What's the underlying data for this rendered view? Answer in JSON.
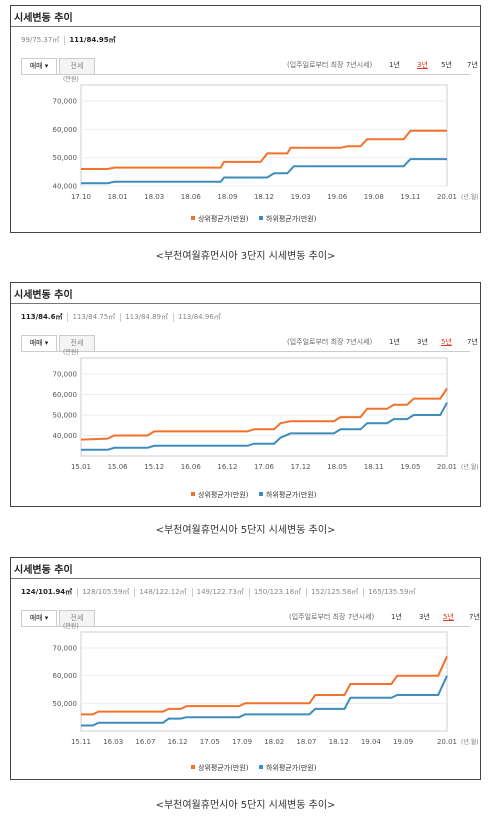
{
  "colors": {
    "upper": "#f2722b",
    "lower": "#3c8dbc",
    "active_tab": "#e03a1e"
  },
  "panels": [
    {
      "title": "시세변동 추이",
      "areas": [
        {
          "label": "99/75.37㎡",
          "active": false
        },
        {
          "label": "111/84.95㎡",
          "active": true
        }
      ],
      "tabs": [
        "매매 ▾",
        "전세"
      ],
      "period_note": "(입주일로부터 최장 7년시세)",
      "periods": [
        {
          "label": "1년",
          "active": false
        },
        {
          "label": "3년",
          "active": true
        },
        {
          "label": "5년",
          "active": false
        },
        {
          "label": "7년",
          "active": false
        }
      ],
      "caption": "<부천여월휴먼시아 3단지 시세변동 추이>"
    },
    {
      "title": "시세변동 추이",
      "areas": [
        {
          "label": "113/84.6㎡",
          "active": true
        },
        {
          "label": "113/84.75㎡",
          "active": false
        },
        {
          "label": "113/84.89㎡",
          "active": false
        },
        {
          "label": "113/84.96㎡",
          "active": false
        }
      ],
      "tabs": [
        "매매 ▾",
        "전세"
      ],
      "period_note": "(입주일로부터 최장 7년시세)",
      "periods": [
        {
          "label": "1년",
          "active": false
        },
        {
          "label": "3년",
          "active": false
        },
        {
          "label": "5년",
          "active": true
        },
        {
          "label": "7년",
          "active": false
        }
      ],
      "caption": "<부천여월휴먼시아 5단지 시세변동 추이>"
    },
    {
      "title": "시세변동 추이",
      "areas": [
        {
          "label": "124/101.94㎡",
          "active": true
        },
        {
          "label": "128/105.59㎡",
          "active": false
        },
        {
          "label": "148/122.12㎡",
          "active": false
        },
        {
          "label": "149/122.73㎡",
          "active": false
        },
        {
          "label": "150/123.18㎡",
          "active": false
        },
        {
          "label": "152/125.58㎡",
          "active": false
        },
        {
          "label": "165/135.59㎡",
          "active": false
        }
      ],
      "tabs": [
        "매매 ▾",
        "전세"
      ],
      "period_note": "(입주일로부터 최장 7년시세)",
      "periods": [
        {
          "label": "1년",
          "active": false
        },
        {
          "label": "3년",
          "active": false
        },
        {
          "label": "5년",
          "active": true
        },
        {
          "label": "7년",
          "active": false
        }
      ],
      "caption": "<부천여월휴먼시아 5단지 시세변동 추이>"
    }
  ],
  "chart_data": [
    {
      "type": "line",
      "ylabel": "(만원)",
      "x_unit": "(년.월)",
      "ylim": [
        40000,
        70000
      ],
      "yticks": [
        "70,000",
        "60,000",
        "50,000",
        "40,000"
      ],
      "ytick_values": [
        70000,
        60000,
        50000,
        40000
      ],
      "xticks": [
        "17.10",
        "18.01",
        "18.03",
        "18.06",
        "18.09",
        "18.12",
        "19.03",
        "19.06",
        "19.08",
        "19.11",
        "20.01"
      ],
      "legend": [
        "상위평균가(만원)",
        "하위평균가(만원)"
      ],
      "series": [
        {
          "name": "상위평균가(만원)",
          "points": [
            [
              0,
              46000
            ],
            [
              0.8,
              46000
            ],
            [
              1,
              46500
            ],
            [
              4.2,
              46500
            ],
            [
              4.3,
              48500
            ],
            [
              5.4,
              48500
            ],
            [
              5.6,
              51500
            ],
            [
              6.2,
              51500
            ],
            [
              6.3,
              53500
            ],
            [
              7.8,
              53500
            ],
            [
              8.0,
              54000
            ],
            [
              8.4,
              54000
            ],
            [
              8.6,
              56500
            ],
            [
              9.7,
              56500
            ],
            [
              9.9,
              59500
            ],
            [
              11,
              59500
            ]
          ]
        },
        {
          "name": "하위평균가(만원)",
          "points": [
            [
              0,
              41000
            ],
            [
              0.8,
              41000
            ],
            [
              1,
              41500
            ],
            [
              4.2,
              41500
            ],
            [
              4.3,
              43000
            ],
            [
              5.6,
              43000
            ],
            [
              5.8,
              44500
            ],
            [
              6.2,
              44500
            ],
            [
              6.4,
              47000
            ],
            [
              9.7,
              47000
            ],
            [
              9.9,
              49500
            ],
            [
              11,
              49500
            ]
          ]
        }
      ]
    },
    {
      "type": "line",
      "ylabel": "(만원)",
      "x_unit": "(년.월)",
      "ylim": [
        30000,
        70000
      ],
      "yticks": [
        "70,000",
        "60,000",
        "50,000",
        "40,000"
      ],
      "ytick_values": [
        70000,
        60000,
        50000,
        40000
      ],
      "xticks": [
        "15.01",
        "15.06",
        "15.12",
        "16.06",
        "16.12",
        "17.06",
        "17.12",
        "18.05",
        "18.11",
        "19.05",
        "20.01"
      ],
      "legend": [
        "상위평균가(만원)",
        "하위평균가(만원)"
      ],
      "series": [
        {
          "name": "상위평균가(만원)",
          "points": [
            [
              0,
              38000
            ],
            [
              0.8,
              38500
            ],
            [
              1.0,
              40000
            ],
            [
              2.0,
              40000
            ],
            [
              2.2,
              42000
            ],
            [
              5.0,
              42000
            ],
            [
              5.2,
              43000
            ],
            [
              5.8,
              43000
            ],
            [
              6.0,
              46000
            ],
            [
              6.3,
              47000
            ],
            [
              7.6,
              47000
            ],
            [
              7.8,
              49000
            ],
            [
              8.4,
              49000
            ],
            [
              8.6,
              53000
            ],
            [
              9.2,
              53000
            ],
            [
              9.4,
              55000
            ],
            [
              9.8,
              55000
            ],
            [
              10.0,
              58000
            ],
            [
              10.8,
              58000
            ],
            [
              11,
              63000
            ]
          ]
        },
        {
          "name": "하위평균가(만원)",
          "points": [
            [
              0,
              33000
            ],
            [
              0.8,
              33000
            ],
            [
              1.0,
              34000
            ],
            [
              2.0,
              34000
            ],
            [
              2.2,
              35000
            ],
            [
              5.0,
              35000
            ],
            [
              5.2,
              36000
            ],
            [
              5.8,
              36000
            ],
            [
              6.0,
              39000
            ],
            [
              6.3,
              41000
            ],
            [
              7.6,
              41000
            ],
            [
              7.8,
              43000
            ],
            [
              8.4,
              43000
            ],
            [
              8.6,
              46000
            ],
            [
              9.2,
              46000
            ],
            [
              9.4,
              48000
            ],
            [
              9.8,
              48000
            ],
            [
              10.0,
              50000
            ],
            [
              10.8,
              50000
            ],
            [
              11,
              56000
            ]
          ]
        }
      ]
    },
    {
      "type": "line",
      "ylabel": "(만원)",
      "x_unit": "(년.월)",
      "ylim": [
        40000,
        70000
      ],
      "yticks": [
        "70,000",
        "60,000",
        "50,000"
      ],
      "ytick_values": [
        70000,
        60000,
        50000
      ],
      "xticks": [
        "15.11",
        "16.03",
        "16.07",
        "16.12",
        "17.05",
        "17.09",
        "18.02",
        "18.07",
        "18.12",
        "19.04",
        "19.09",
        "20.01"
      ],
      "legend": [
        "상위평균가(만원)",
        "하위평균가(만원)"
      ],
      "series": [
        {
          "name": "상위평균가(만원)",
          "points": [
            [
              0,
              46000
            ],
            [
              0.4,
              46000
            ],
            [
              0.6,
              47000
            ],
            [
              2.8,
              47000
            ],
            [
              3.0,
              48000
            ],
            [
              3.4,
              48000
            ],
            [
              3.6,
              49000
            ],
            [
              5.4,
              49000
            ],
            [
              5.6,
              50000
            ],
            [
              7.8,
              50000
            ],
            [
              8.0,
              53000
            ],
            [
              9.0,
              53000
            ],
            [
              9.2,
              57000
            ],
            [
              10.6,
              57000
            ],
            [
              10.8,
              60000
            ],
            [
              12.2,
              60000
            ],
            [
              12.5,
              67000
            ]
          ]
        },
        {
          "name": "하위평균가(만원)",
          "points": [
            [
              0,
              42000
            ],
            [
              0.4,
              42000
            ],
            [
              0.6,
              43000
            ],
            [
              2.8,
              43000
            ],
            [
              3.0,
              44500
            ],
            [
              3.4,
              44500
            ],
            [
              3.6,
              45000
            ],
            [
              5.4,
              45000
            ],
            [
              5.6,
              46000
            ],
            [
              7.8,
              46000
            ],
            [
              8.0,
              48000
            ],
            [
              9.0,
              48000
            ],
            [
              9.2,
              52000
            ],
            [
              10.6,
              52000
            ],
            [
              10.8,
              53000
            ],
            [
              12.2,
              53000
            ],
            [
              12.5,
              60000
            ]
          ]
        }
      ]
    }
  ]
}
